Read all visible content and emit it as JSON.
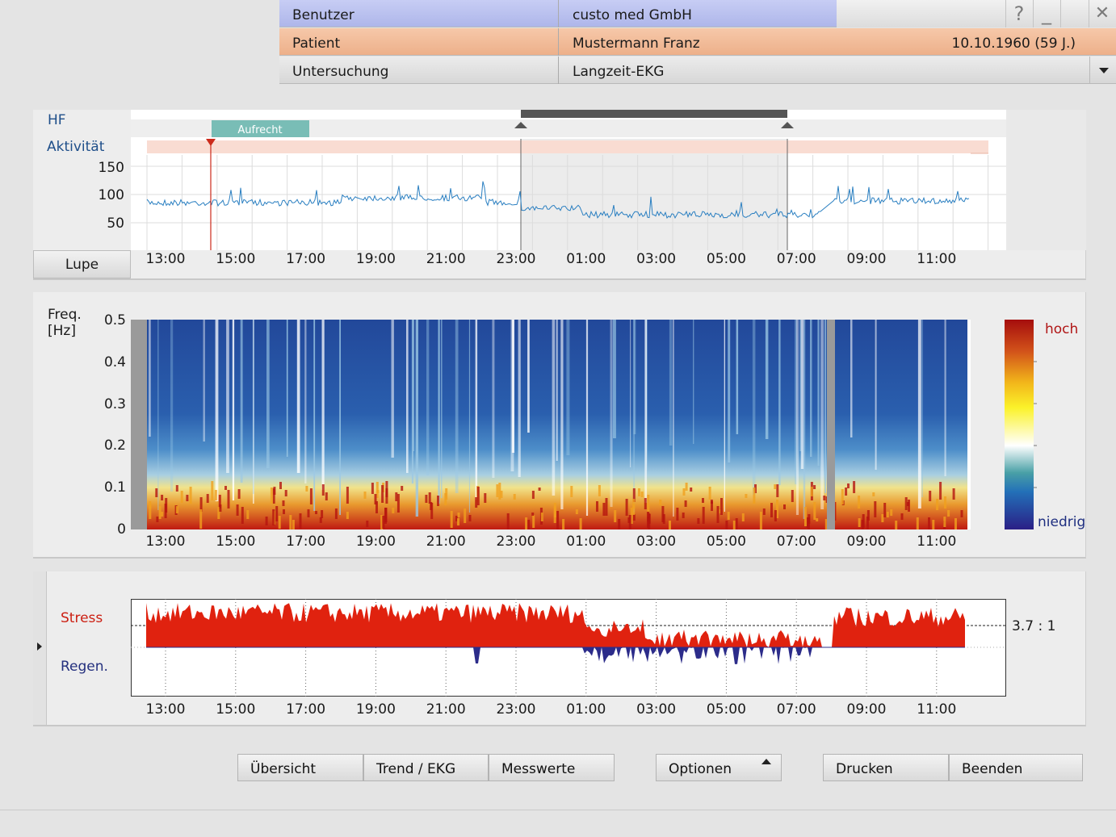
{
  "header": {
    "user_label": "Benutzer",
    "user_value": "custo med GmbH",
    "patient_label": "Patient",
    "patient_value": "Mustermann Franz",
    "patient_dob": "10.10.1960 (59 J.)",
    "exam_label": "Untersuchung",
    "exam_value": "Langzeit-EKG",
    "help_glyph": "?",
    "minimize_glyph": "_",
    "close_glyph": "✕"
  },
  "time_ticks": [
    "13:00",
    "15:00",
    "17:00",
    "19:00",
    "21:00",
    "23:00",
    "01:00",
    "03:00",
    "05:00",
    "07:00",
    "09:00",
    "11:00"
  ],
  "hr_panel": {
    "hf_label": "HF",
    "activity_label": "Aktivität",
    "activity_tag": "Aufrecht",
    "y_ticks": [
      "150",
      "100",
      "50"
    ],
    "lupe_button": "Lupe",
    "colors": {
      "hr_line": "#2a7fc1",
      "marker": "#cc2a1a",
      "activity_band": "#f9dcd2",
      "night_shade": "#e6e6e6",
      "tag": "#79bdb6"
    }
  },
  "spectrogram": {
    "freq_label_line1": "Freq.",
    "freq_label_line2": "[Hz]",
    "y_ticks": [
      "0.5",
      "0.4",
      "0.3",
      "0.2",
      "0.1",
      "0"
    ],
    "scale_high": "hoch",
    "scale_low": "niedrig",
    "colors": {
      "high": "#a50d0d",
      "low": "#2a2a8c"
    }
  },
  "stress_panel": {
    "stress_label": "Stress",
    "regen_label": "Regen.",
    "ratio": "3.7 : 1",
    "colors": {
      "stress": "#e0220f",
      "regen": "#2c2c8a"
    }
  },
  "buttons": {
    "overview": "Übersicht",
    "trend": "Trend / EKG",
    "values": "Messwerte",
    "options": "Optionen",
    "print": "Drucken",
    "quit": "Beenden"
  }
}
